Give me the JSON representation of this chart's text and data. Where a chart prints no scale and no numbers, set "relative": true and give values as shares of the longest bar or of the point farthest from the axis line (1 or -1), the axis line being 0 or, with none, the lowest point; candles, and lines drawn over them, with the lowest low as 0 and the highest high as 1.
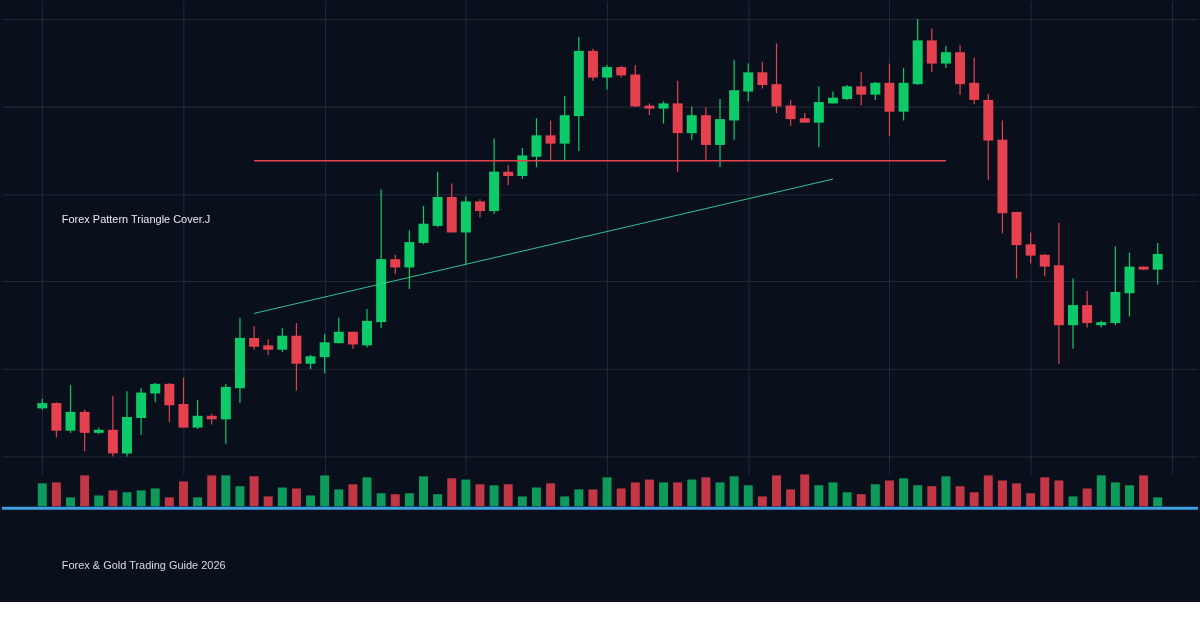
{
  "chart_data": [
    {
      "type": "candlestick",
      "relative": true,
      "grid": true,
      "annotations": [
        "Forex Pattern Triangle Cover.J"
      ],
      "categories": [
        null,
        null,
        null,
        null,
        null,
        null,
        null,
        null,
        null,
        null,
        null,
        null,
        null,
        null,
        null,
        null,
        null,
        null,
        null,
        null,
        null,
        null,
        null,
        null,
        null,
        null,
        null,
        null,
        null,
        null,
        null,
        null,
        null,
        null,
        null,
        null,
        null,
        null,
        null,
        null,
        null,
        null,
        null,
        null,
        null,
        null,
        null,
        null,
        null,
        null,
        null,
        null,
        null,
        null,
        null,
        null,
        null,
        null,
        null,
        null,
        null,
        null,
        null,
        null,
        null,
        null,
        null,
        null,
        null,
        null,
        null,
        null,
        null,
        null,
        null,
        null,
        null,
        null,
        null,
        null
      ],
      "ohlc": [
        [
          0.11,
          0.132,
          0.107,
          0.122
        ],
        [
          0.122,
          0.124,
          0.044,
          0.059
        ],
        [
          0.059,
          0.163,
          0.054,
          0.102
        ],
        [
          0.102,
          0.107,
          0.012,
          0.054
        ],
        [
          0.054,
          0.066,
          0.051,
          0.061
        ],
        [
          0.061,
          0.139,
          0.0,
          0.007
        ],
        [
          0.007,
          0.149,
          0.0,
          0.09
        ],
        [
          0.088,
          0.156,
          0.049,
          0.146
        ],
        [
          0.144,
          0.168,
          0.124,
          0.166
        ],
        [
          0.166,
          0.168,
          0.078,
          0.117
        ],
        [
          0.12,
          0.18,
          0.066,
          0.066
        ],
        [
          0.066,
          0.129,
          0.063,
          0.093
        ],
        [
          0.093,
          0.098,
          0.073,
          0.085
        ],
        [
          0.085,
          0.166,
          0.029,
          0.159
        ],
        [
          0.156,
          0.317,
          0.122,
          0.271
        ],
        [
          0.271,
          0.298,
          0.244,
          0.251
        ],
        [
          0.254,
          0.268,
          0.232,
          0.244
        ],
        [
          0.244,
          0.293,
          0.239,
          0.276
        ],
        [
          0.276,
          0.305,
          0.151,
          0.212
        ],
        [
          0.212,
          0.232,
          0.2,
          0.229
        ],
        [
          0.227,
          0.28,
          0.19,
          0.261
        ],
        [
          0.259,
          0.317,
          0.259,
          0.285
        ],
        [
          0.285,
          0.285,
          0.246,
          0.256
        ],
        [
          0.254,
          0.337,
          0.249,
          0.31
        ],
        [
          0.307,
          0.61,
          0.293,
          0.451
        ],
        [
          0.451,
          0.461,
          0.417,
          0.432
        ],
        [
          0.432,
          0.517,
          0.383,
          0.49
        ],
        [
          0.488,
          0.573,
          0.485,
          0.532
        ],
        [
          0.527,
          0.651,
          0.524,
          0.593
        ],
        [
          0.593,
          0.624,
          0.512,
          0.512
        ],
        [
          0.512,
          0.595,
          0.437,
          0.583
        ],
        [
          0.583,
          0.588,
          0.546,
          0.561
        ],
        [
          0.561,
          0.727,
          0.554,
          0.651
        ],
        [
          0.651,
          0.666,
          0.62,
          0.641
        ],
        [
          0.641,
          0.705,
          0.634,
          0.688
        ],
        [
          0.685,
          0.773,
          0.661,
          0.734
        ],
        [
          0.734,
          0.768,
          0.676,
          0.715
        ],
        [
          0.715,
          0.824,
          0.676,
          0.78
        ],
        [
          0.778,
          0.959,
          0.698,
          0.927
        ],
        [
          0.927,
          0.932,
          0.859,
          0.866
        ],
        [
          0.866,
          0.895,
          0.839,
          0.89
        ],
        [
          0.89,
          0.893,
          0.866,
          0.871
        ],
        [
          0.873,
          0.895,
          0.798,
          0.8
        ],
        [
          0.802,
          0.807,
          0.78,
          0.795
        ],
        [
          0.795,
          0.812,
          0.761,
          0.807
        ],
        [
          0.807,
          0.859,
          0.651,
          0.739
        ],
        [
          0.739,
          0.8,
          0.724,
          0.78
        ],
        [
          0.78,
          0.798,
          0.676,
          0.712
        ],
        [
          0.712,
          0.817,
          0.661,
          0.771
        ],
        [
          0.768,
          0.907,
          0.724,
          0.837
        ],
        [
          0.834,
          0.898,
          0.812,
          0.878
        ],
        [
          0.878,
          0.902,
          0.841,
          0.849
        ],
        [
          0.851,
          0.944,
          0.785,
          0.8
        ],
        [
          0.802,
          0.815,
          0.756,
          0.771
        ],
        [
          0.773,
          0.785,
          0.763,
          0.763
        ],
        [
          0.763,
          0.846,
          0.707,
          0.81
        ],
        [
          0.807,
          0.834,
          0.807,
          0.82
        ],
        [
          0.817,
          0.849,
          0.815,
          0.846
        ],
        [
          0.846,
          0.878,
          0.802,
          0.827
        ],
        [
          0.827,
          0.856,
          0.815,
          0.854
        ],
        [
          0.854,
          0.898,
          0.732,
          0.788
        ],
        [
          0.788,
          0.888,
          0.768,
          0.854
        ],
        [
          0.851,
          1.0,
          0.849,
          0.951
        ],
        [
          0.951,
          0.978,
          0.878,
          0.898
        ],
        [
          0.898,
          0.939,
          0.888,
          0.924
        ],
        [
          0.924,
          0.941,
          0.827,
          0.851
        ],
        [
          0.854,
          0.912,
          0.805,
          0.815
        ],
        [
          0.815,
          0.829,
          0.632,
          0.722
        ],
        [
          0.724,
          0.768,
          0.51,
          0.556
        ],
        [
          0.559,
          0.559,
          0.407,
          0.483
        ],
        [
          0.485,
          0.512,
          0.441,
          0.459
        ],
        [
          0.461,
          0.463,
          0.412,
          0.434
        ],
        [
          0.437,
          0.534,
          0.212,
          0.3
        ],
        [
          0.3,
          0.407,
          0.246,
          0.346
        ],
        [
          0.346,
          0.378,
          0.295,
          0.305
        ],
        [
          0.3,
          0.31,
          0.295,
          0.307
        ],
        [
          0.305,
          0.48,
          0.3,
          0.376
        ],
        [
          0.373,
          0.466,
          0.32,
          0.434
        ],
        [
          0.434,
          0.434,
          0.427,
          0.427
        ],
        [
          0.427,
          0.488,
          0.393,
          0.463
        ]
      ],
      "colors": [
        "#0ecb6a",
        "#e5414f",
        "#0ecb6a",
        "#e5414f",
        "#0ecb6a",
        "#e5414f",
        "#0ecb6a",
        "#0ecb6a",
        "#0ecb6a",
        "#e5414f",
        "#e5414f",
        "#0ecb6a",
        "#e5414f",
        "#0ecb6a",
        "#0ecb6a",
        "#e5414f",
        "#e5414f",
        "#0ecb6a",
        "#e5414f",
        "#0ecb6a",
        "#0ecb6a",
        "#0ecb6a",
        "#e5414f",
        "#0ecb6a",
        "#0ecb6a",
        "#e5414f",
        "#0ecb6a",
        "#0ecb6a",
        "#0ecb6a",
        "#e5414f",
        "#0ecb6a",
        "#e5414f",
        "#0ecb6a",
        "#e5414f",
        "#0ecb6a",
        "#0ecb6a",
        "#e5414f",
        "#0ecb6a",
        "#0ecb6a",
        "#e5414f",
        "#0ecb6a",
        "#e5414f",
        "#e5414f",
        "#e5414f",
        "#0ecb6a",
        "#e5414f",
        "#0ecb6a",
        "#e5414f",
        "#0ecb6a",
        "#0ecb6a",
        "#0ecb6a",
        "#e5414f",
        "#e5414f",
        "#e5414f",
        "#e5414f",
        "#0ecb6a",
        "#0ecb6a",
        "#0ecb6a",
        "#e5414f",
        "#0ecb6a",
        "#e5414f",
        "#0ecb6a",
        "#0ecb6a",
        "#e5414f",
        "#0ecb6a",
        "#e5414f",
        "#e5414f",
        "#e5414f",
        "#e5414f",
        "#e5414f",
        "#e5414f",
        "#e5414f",
        "#e5414f",
        "#0ecb6a",
        "#e5414f",
        "#0ecb6a",
        "#0ecb6a",
        "#0ecb6a",
        "#e5414f",
        "#0ecb6a"
      ],
      "series": [
        {
          "type": "line",
          "color": "#e5414f",
          "values": [
            null,
            null,
            null,
            null,
            null,
            null,
            null,
            null,
            null,
            null,
            null,
            null,
            null,
            null,
            null,
            0.676,
            null,
            null,
            null,
            null,
            null,
            null,
            null,
            null,
            null,
            null,
            null,
            null,
            null,
            null,
            null,
            null,
            null,
            null,
            null,
            null,
            null,
            null,
            null,
            null,
            null,
            null,
            null,
            null,
            null,
            null,
            null,
            null,
            null,
            null,
            null,
            null,
            null,
            null,
            null,
            null,
            null,
            null,
            null,
            null,
            null,
            null,
            null,
            null,
            0.676,
            null,
            null,
            null,
            null,
            null,
            null,
            null,
            null,
            null,
            null,
            null,
            null,
            null,
            null,
            null
          ]
        },
        {
          "type": "line",
          "color": "#2ec58a",
          "values": [
            null,
            null,
            null,
            null,
            null,
            null,
            null,
            null,
            null,
            null,
            null,
            null,
            null,
            null,
            null,
            0.327,
            null,
            null,
            null,
            null,
            null,
            null,
            null,
            null,
            null,
            null,
            null,
            null,
            null,
            null,
            null,
            null,
            null,
            null,
            null,
            null,
            null,
            null,
            null,
            null,
            null,
            null,
            null,
            null,
            null,
            null,
            null,
            null,
            null,
            null,
            null,
            null,
            null,
            null,
            null,
            null,
            0.634,
            null,
            null,
            null,
            null,
            null,
            null,
            null,
            null,
            null,
            null,
            null,
            null,
            null,
            null,
            null,
            null,
            null,
            null,
            null,
            null,
            null,
            null,
            null
          ]
        }
      ]
    },
    {
      "type": "bar",
      "relative": true,
      "annotations": [
        "Forex & Gold Trading Guide 2026"
      ],
      "categories": [
        null,
        null,
        null,
        null,
        null,
        null,
        null,
        null,
        null,
        null,
        null,
        null,
        null,
        null,
        null,
        null,
        null,
        null,
        null,
        null,
        null,
        null,
        null,
        null,
        null,
        null,
        null,
        null,
        null,
        null,
        null,
        null,
        null,
        null,
        null,
        null,
        null,
        null,
        null,
        null,
        null,
        null,
        null,
        null,
        null,
        null,
        null,
        null,
        null,
        null,
        null,
        null,
        null,
        null,
        null,
        null,
        null,
        null,
        null,
        null,
        null,
        null,
        null,
        null,
        null,
        null,
        null,
        null,
        null,
        null,
        null,
        null,
        null,
        null,
        null,
        null,
        null,
        null,
        null,
        null
      ],
      "values": [
        0.72,
        0.75,
        0.28,
        0.97,
        0.34,
        0.5,
        0.44,
        0.5,
        0.56,
        0.28,
        0.78,
        0.28,
        0.97,
        0.97,
        0.63,
        0.94,
        0.31,
        0.59,
        0.56,
        0.34,
        0.97,
        0.53,
        0.69,
        0.91,
        0.41,
        0.38,
        0.41,
        0.94,
        0.38,
        0.88,
        0.84,
        0.69,
        0.66,
        0.69,
        0.31,
        0.59,
        0.72,
        0.31,
        0.53,
        0.53,
        0.91,
        0.56,
        0.75,
        0.84,
        0.75,
        0.75,
        0.84,
        0.91,
        0.75,
        0.94,
        0.66,
        0.31,
        0.97,
        0.53,
        1,
        0.66,
        0.75,
        0.44,
        0.38,
        0.69,
        0.81,
        0.88,
        0.66,
        0.63,
        0.94,
        0.63,
        0.44,
        0.97,
        0.81,
        0.72,
        0.41,
        0.91,
        0.81,
        0.31,
        0.56,
        0.97,
        0.75,
        0.66,
        0.97,
        0.28
      ],
      "colors": [
        "#0d9a5a",
        "#c23646",
        "#0d9a5a",
        "#c23646",
        "#0d9a5a",
        "#c23646",
        "#0d9a5a",
        "#0d9a5a",
        "#0d9a5a",
        "#c23646",
        "#c23646",
        "#0d9a5a",
        "#c23646",
        "#0d9a5a",
        "#0d9a5a",
        "#c23646",
        "#c23646",
        "#0d9a5a",
        "#c23646",
        "#0d9a5a",
        "#0d9a5a",
        "#0d9a5a",
        "#c23646",
        "#0d9a5a",
        "#0d9a5a",
        "#c23646",
        "#0d9a5a",
        "#0d9a5a",
        "#0d9a5a",
        "#c23646",
        "#0d9a5a",
        "#c23646",
        "#0d9a5a",
        "#c23646",
        "#0d9a5a",
        "#0d9a5a",
        "#c23646",
        "#0d9a5a",
        "#0d9a5a",
        "#c23646",
        "#0d9a5a",
        "#c23646",
        "#c23646",
        "#c23646",
        "#0d9a5a",
        "#c23646",
        "#0d9a5a",
        "#c23646",
        "#0d9a5a",
        "#0d9a5a",
        "#0d9a5a",
        "#c23646",
        "#c23646",
        "#c23646",
        "#c23646",
        "#0d9a5a",
        "#0d9a5a",
        "#0d9a5a",
        "#c23646",
        "#0d9a5a",
        "#c23646",
        "#0d9a5a",
        "#0d9a5a",
        "#c23646",
        "#0d9a5a",
        "#c23646",
        "#c23646",
        "#c23646",
        "#c23646",
        "#c23646",
        "#c23646",
        "#c23646",
        "#c23646",
        "#0d9a5a",
        "#c23646",
        "#0d9a5a",
        "#0d9a5a",
        "#0d9a5a",
        "#c23646",
        "#0d9a5a"
      ]
    }
  ]
}
